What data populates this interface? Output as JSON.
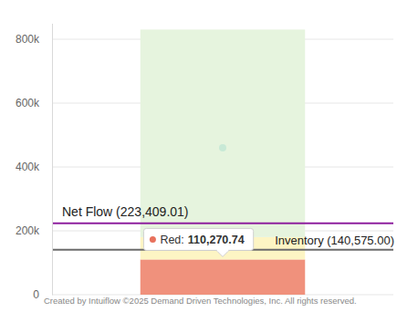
{
  "chart_data": {
    "type": "bar",
    "stacked": true,
    "grid": true,
    "categories": [
      null
    ],
    "series": [
      {
        "color": "#f0917c",
        "values": [
          110270.74
        ]
      },
      {
        "color": "#fdf5c4",
        "values": [
          70000
        ]
      },
      {
        "color": "#e6f4de",
        "values": [
          650000
        ]
      }
    ],
    "points": {
      "color": "#c8e9d6",
      "marker": "circle",
      "values": [
        460000
      ]
    },
    "lines": [
      {
        "label": "Net Flow (223,409.01)",
        "value": 223409.01,
        "color": "#8e1f9e"
      },
      {
        "label": "Inventory (140,575.00)",
        "value": 140575.0,
        "color": "#6b6b6b"
      }
    ],
    "tooltip": {
      "label": "Red:",
      "value_label": "110,270.74",
      "color": "#e8715c"
    },
    "ylim": [
      0,
      850000
    ],
    "yticks": [
      0,
      {
        "value": 200000,
        "label": "200k"
      },
      {
        "value": 400000,
        "label": "400k"
      },
      {
        "value": 600000,
        "label": "600k"
      },
      {
        "value": 800000,
        "label": "800k"
      }
    ],
    "credits": "Created by Intuiflow ©2025 Demand Driven Technologies, Inc. All rights reserved."
  }
}
